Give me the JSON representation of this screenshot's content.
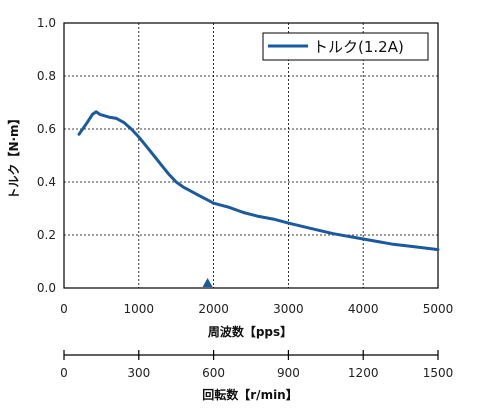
{
  "chart_data": {
    "type": "line",
    "title": "",
    "xlabel": "周波数【pps】",
    "ylabel": "トルク【N·m】",
    "xlim": [
      0,
      5000
    ],
    "ylim": [
      0,
      1.0
    ],
    "grid": true,
    "legend_position": "top-right",
    "x_ticks": [
      "0",
      "1000",
      "2000",
      "3000",
      "4000",
      "5000"
    ],
    "y_ticks": [
      "0.0",
      "0.2",
      "0.4",
      "0.6",
      "0.8",
      "1.0"
    ],
    "series": [
      {
        "name": "トルク(1.2A)",
        "color": "#1a5aa0",
        "x": [
          200,
          300,
          380,
          430,
          480,
          600,
          700,
          800,
          900,
          1000,
          1100,
          1200,
          1300,
          1400,
          1500,
          1600,
          1700,
          1800,
          1900,
          2000,
          2200,
          2400,
          2600,
          2800,
          3000,
          3300,
          3600,
          4000,
          4400,
          4700,
          5000
        ],
        "y": [
          0.58,
          0.62,
          0.655,
          0.665,
          0.655,
          0.645,
          0.64,
          0.625,
          0.6,
          0.57,
          0.535,
          0.5,
          0.465,
          0.43,
          0.4,
          0.38,
          0.365,
          0.35,
          0.335,
          0.32,
          0.305,
          0.285,
          0.27,
          0.26,
          0.245,
          0.225,
          0.205,
          0.185,
          0.165,
          0.155,
          0.145
        ]
      }
    ],
    "marker": {
      "x": 1920,
      "symbol": "triangle-up",
      "color": "#1a5aa0"
    },
    "secondary_axis": {
      "label": "回転数【r/min】",
      "range": [
        0,
        1500
      ],
      "ticks": [
        "0",
        "300",
        "600",
        "900",
        "1200",
        "1500"
      ]
    }
  }
}
